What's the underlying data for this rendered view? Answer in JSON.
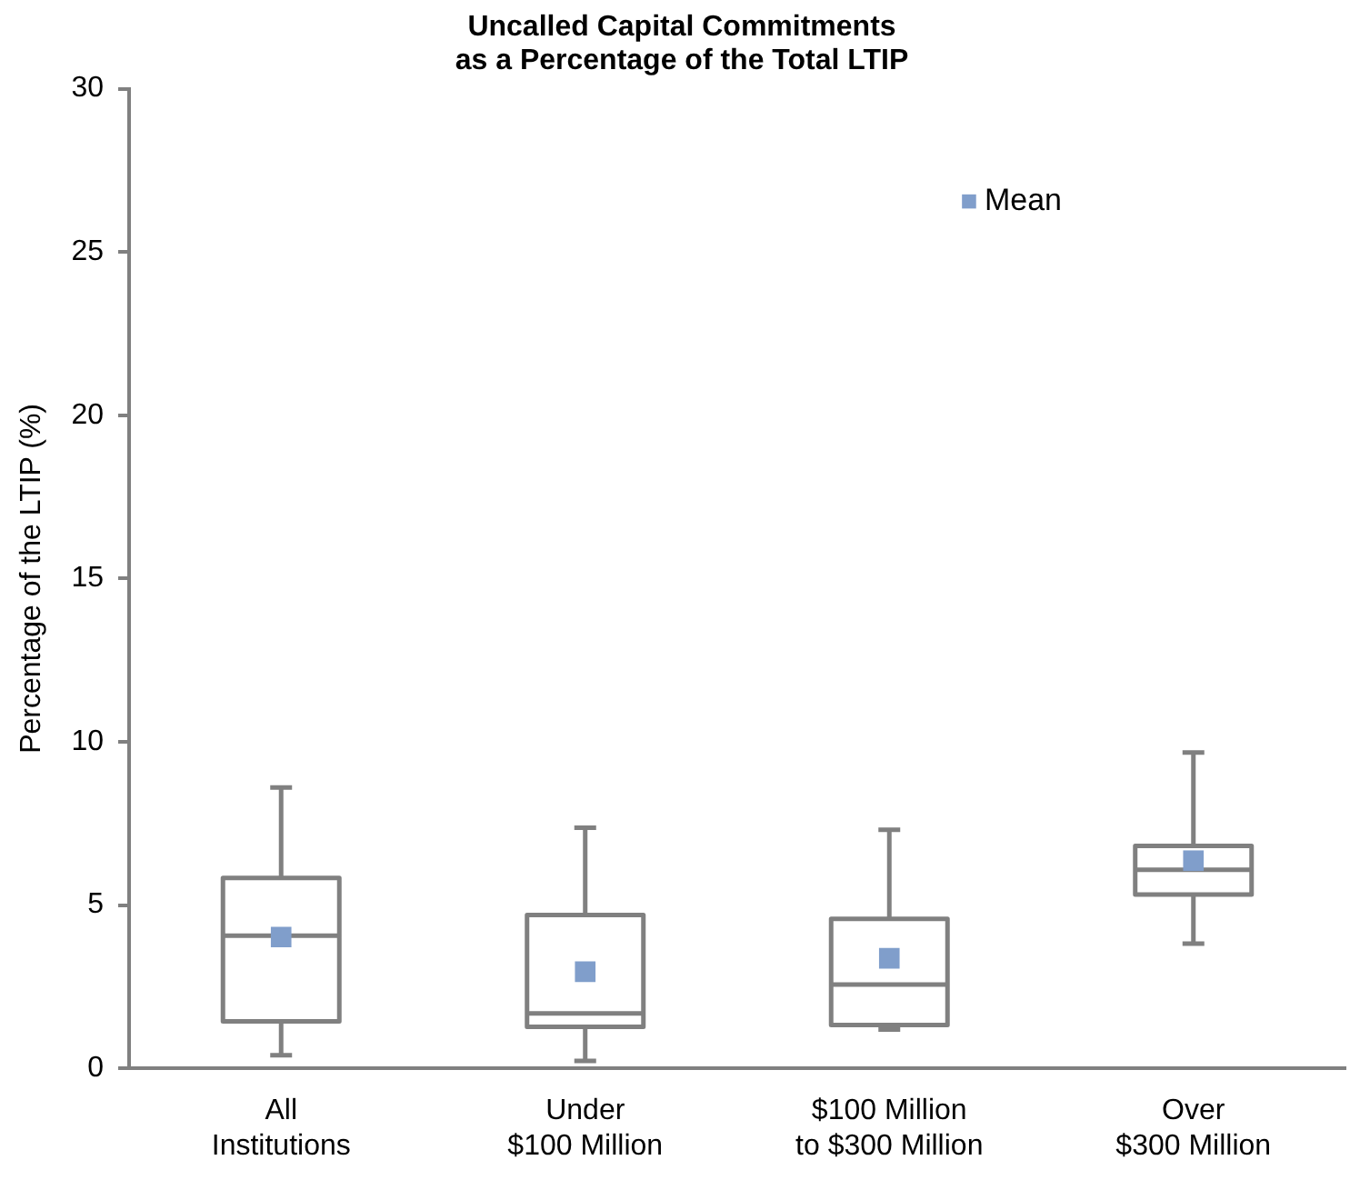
{
  "chart_data": {
    "type": "box",
    "title": "Uncalled Capital Commitments\nas a Percentage of the Total LTIP",
    "ylabel": "Percentage of the LTIP (%)",
    "categories": [
      "All\nInstitutions",
      "Under\n$100 Million",
      "$100 Million\nto $300 Million",
      "Over\n$300 Million"
    ],
    "color": "#808080",
    "boxes": [
      {
        "low": 0.4,
        "q1": 1.44,
        "median": 4.06,
        "q3": 5.83,
        "high": 8.6
      },
      {
        "low": 0.23,
        "q1": 1.27,
        "median": 1.68,
        "q3": 4.7,
        "high": 7.37
      },
      {
        "low": 1.19,
        "q1": 1.33,
        "median": 2.57,
        "q3": 4.58,
        "high": 7.31
      },
      {
        "low": 3.82,
        "q1": 5.32,
        "median": 6.08,
        "q3": 6.81,
        "high": 9.67
      }
    ],
    "series": [
      {
        "name": "Mean",
        "type": "scatter",
        "color": "#809ecb",
        "values": [
          4.02,
          2.96,
          3.37,
          6.36
        ]
      }
    ],
    "ylim": [
      0,
      30
    ],
    "yticks": [
      0,
      5,
      10,
      15,
      20,
      25,
      30
    ],
    "grid": false,
    "legend": "top right",
    "marker": "square"
  }
}
